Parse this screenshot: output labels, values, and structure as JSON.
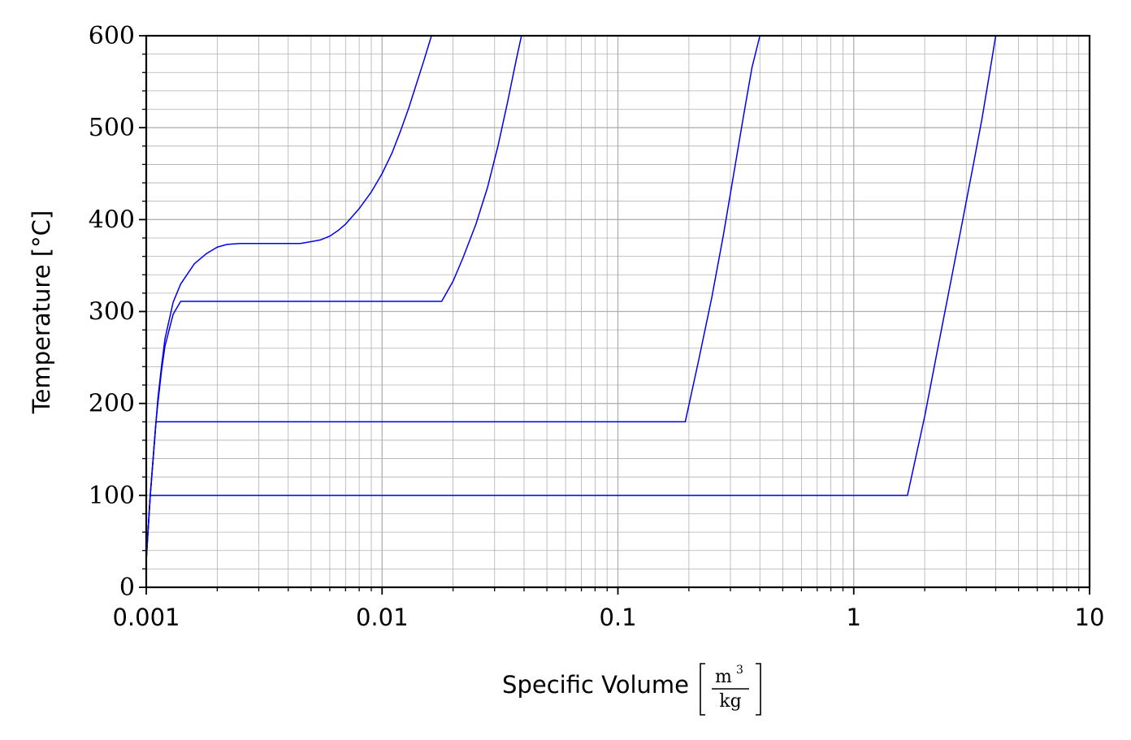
{
  "chart_data": {
    "type": "line",
    "xlabel": "Specific Volume",
    "xlabel_unit": {
      "numerator": "m",
      "exponent": "3",
      "denominator": "kg"
    },
    "ylabel": "Temperature [°C]",
    "xscale": "log",
    "xlim": [
      0.001,
      10
    ],
    "ylim": [
      0,
      600
    ],
    "x_ticks": [
      "0.001",
      "0.01",
      "0.1",
      "1",
      "10"
    ],
    "y_ticks": [
      "0",
      "100",
      "200",
      "300",
      "400",
      "500",
      "600"
    ],
    "grid": true,
    "line_color": "#0000ee",
    "series": [
      {
        "x": [
          0.001,
          0.00104,
          0.0011,
          0.00112,
          0.00116,
          0.0012,
          0.0013,
          0.0014,
          0.0016,
          0.0018,
          0.002,
          0.0022,
          0.0025,
          0.003,
          0.0035,
          0.004,
          0.0045,
          0.005,
          0.0055,
          0.006,
          0.0065,
          0.007,
          0.008,
          0.009,
          0.01,
          0.011,
          0.012,
          0.013,
          0.014,
          0.015,
          0.0162
        ],
        "y": [
          30,
          100,
          180,
          205,
          240,
          270,
          310,
          330,
          352,
          363,
          370,
          373,
          374,
          374,
          374,
          374,
          374,
          376,
          378,
          382,
          388,
          395,
          412,
          430,
          450,
          472,
          497,
          522,
          548,
          572,
          600
        ]
      },
      {
        "x": [
          0.001,
          0.00104,
          0.0011,
          0.00112,
          0.00116,
          0.0012,
          0.0013,
          0.0014,
          0.00145,
          0.0179,
          0.02,
          0.022,
          0.025,
          0.028,
          0.031,
          0.034,
          0.037,
          0.039
        ],
        "y": [
          30,
          100,
          180,
          200,
          235,
          262,
          297,
          311,
          311,
          311,
          333,
          358,
          395,
          435,
          480,
          527,
          573,
          600
        ]
      },
      {
        "x": [
          0.001,
          0.00104,
          0.0011,
          0.00112,
          0.193,
          0.22,
          0.25,
          0.28,
          0.31,
          0.34,
          0.37,
          0.4
        ],
        "y": [
          30,
          100,
          180,
          180,
          180,
          247,
          315,
          383,
          450,
          511,
          565,
          600
        ]
      },
      {
        "x": [
          0.001,
          0.00104,
          1.69,
          2.0,
          2.3,
          2.6,
          2.9,
          3.2,
          3.5,
          3.8,
          4.0
        ],
        "y": [
          30,
          100,
          100,
          186,
          267,
          337,
          400,
          457,
          510,
          565,
          600
        ]
      }
    ]
  }
}
